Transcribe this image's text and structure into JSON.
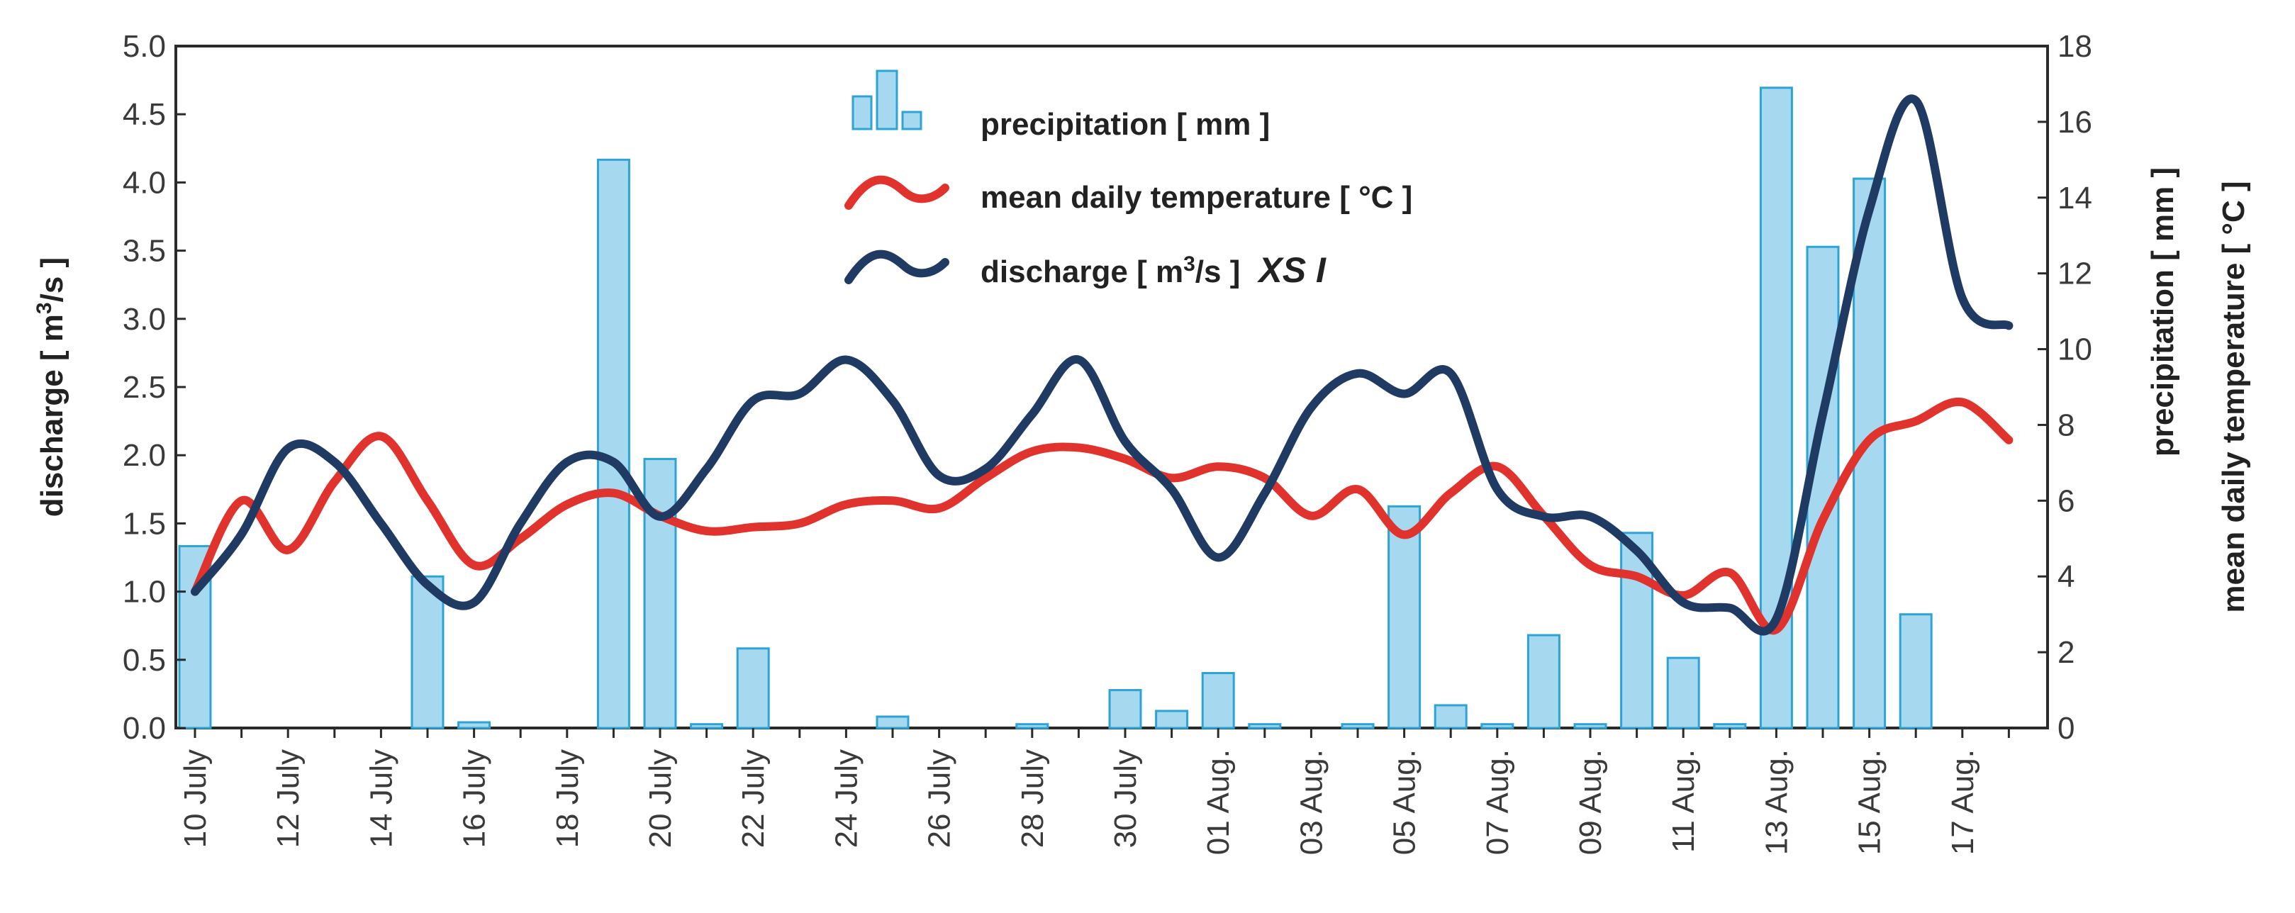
{
  "chart_data": {
    "type": "bar+line",
    "title": "",
    "x_categories": [
      "10 July",
      "11 July",
      "12 July",
      "13 July",
      "14 July",
      "15 July",
      "16 July",
      "17 July",
      "18 July",
      "19 July",
      "20 July",
      "21 July",
      "22 July",
      "23 July",
      "24 July",
      "25 July",
      "26 July",
      "27 July",
      "28 July",
      "29 July",
      "30 July",
      "31 July",
      "01 Aug.",
      "02 Aug.",
      "03 Aug.",
      "04 Aug.",
      "05 Aug.",
      "06 Aug.",
      "07 Aug.",
      "08 Aug.",
      "09 Aug.",
      "10 Aug.",
      "11 Aug.",
      "12 Aug.",
      "13 Aug.",
      "14 Aug.",
      "15 Aug.",
      "16 Aug.",
      "17 Aug.",
      "18 Aug."
    ],
    "x_tick_labels": [
      "10 July",
      "12 July",
      "14 July",
      "16 July",
      "18 July",
      "20 July",
      "22 July",
      "24 July",
      "26 July",
      "28 July",
      "30 July",
      "01 Aug.",
      "03 Aug.",
      "05 Aug.",
      "07 Aug.",
      "09 Aug.",
      "11 Aug.",
      "13 Aug.",
      "15 Aug.",
      "17 Aug."
    ],
    "y_left": {
      "label": "discharge",
      "unit_pre": "[ m",
      "unit_sup": "3",
      "unit_post": "/s ]",
      "range": [
        0,
        5
      ],
      "ticks": [
        "0.0",
        "0.5",
        "1.0",
        "1.5",
        "2.0",
        "2.5",
        "3.0",
        "3.5",
        "4.0",
        "4.5",
        "5.0"
      ]
    },
    "y_right": {
      "label_line1": "precipitation  [ mm ]",
      "label_line2": "mean daily temperature  [ °C ]",
      "range": [
        0,
        18
      ],
      "ticks": [
        "0",
        "2",
        "4",
        "6",
        "8",
        "10",
        "12",
        "14",
        "16",
        "18"
      ]
    },
    "legend": {
      "precipitation": "precipitation  [ mm ]",
      "temperature": "mean daily temperature  [ °C ]",
      "discharge_pre": "discharge  [ m",
      "discharge_sup": "3",
      "discharge_post": "/s ]",
      "discharge_xs": "XS I"
    },
    "series": [
      {
        "name": "precipitation [mm]",
        "type": "bar",
        "axis": "right",
        "values": [
          4.8,
          0,
          0,
          0,
          0,
          4.0,
          0.15,
          0,
          0,
          15.0,
          7.1,
          0.1,
          2.1,
          0,
          0,
          0.3,
          0,
          0,
          0.1,
          0,
          1.0,
          0.45,
          1.45,
          0.1,
          0,
          0.1,
          5.85,
          0.6,
          0.1,
          2.45,
          0.1,
          5.15,
          1.85,
          0.1,
          16.9,
          12.7,
          14.5,
          3.0,
          0,
          0
        ]
      },
      {
        "name": "mean daily temperature [°C]",
        "type": "line",
        "axis": "right",
        "color": "#e0332d",
        "values": [
          3.6,
          6.0,
          4.7,
          6.5,
          7.7,
          6.0,
          4.3,
          5.0,
          5.9,
          6.2,
          5.6,
          5.2,
          5.3,
          5.4,
          5.9,
          6.0,
          5.8,
          6.6,
          7.3,
          7.4,
          7.1,
          6.6,
          6.9,
          6.6,
          5.6,
          6.3,
          5.1,
          6.2,
          6.9,
          5.6,
          4.3,
          4.0,
          3.5,
          4.1,
          2.6,
          5.5,
          7.6,
          8.1,
          8.6,
          7.6
        ]
      },
      {
        "name": "discharge [m3/s] XS I",
        "type": "line",
        "axis": "left",
        "color": "#1f3a63",
        "values": [
          1.0,
          1.42,
          2.05,
          1.95,
          1.5,
          1.05,
          0.92,
          1.5,
          1.95,
          1.95,
          1.55,
          1.9,
          2.4,
          2.45,
          2.7,
          2.4,
          1.85,
          1.9,
          2.3,
          2.7,
          2.1,
          1.75,
          1.25,
          1.72,
          2.35,
          2.6,
          2.45,
          2.6,
          1.75,
          1.55,
          1.55,
          1.3,
          0.92,
          0.88,
          0.8,
          2.3,
          3.8,
          4.6,
          3.15,
          2.95
        ]
      }
    ]
  }
}
